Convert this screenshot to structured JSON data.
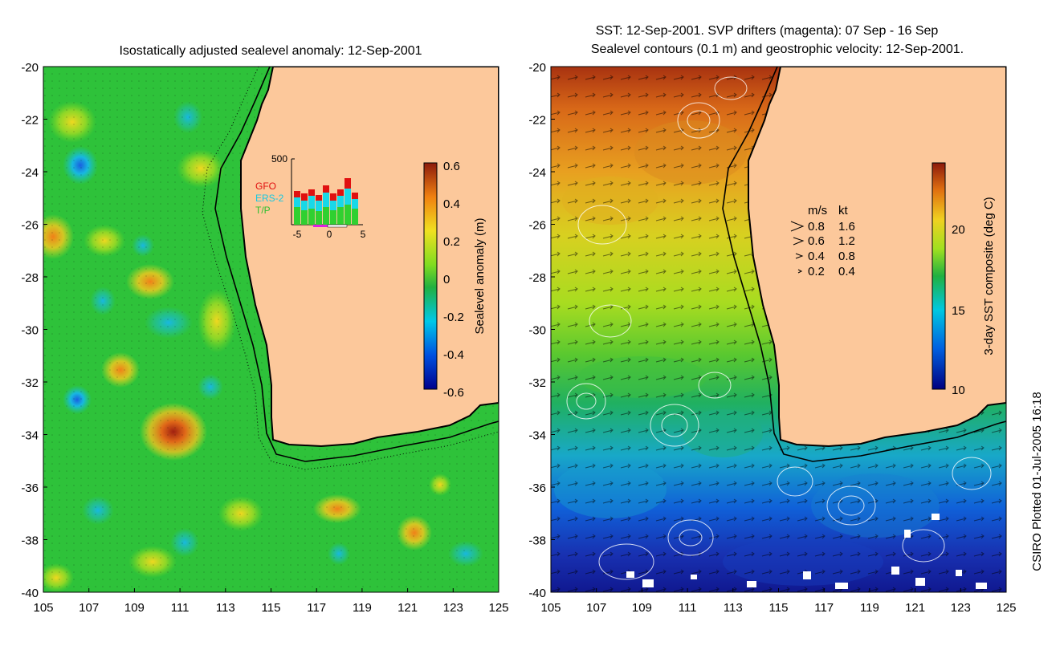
{
  "left_panel": {
    "title": "Isostatically adjusted sealevel anomaly: 12-Sep-2001",
    "colorbar": {
      "label": "Sealevel anomaly (m)",
      "ticks": [
        "0.6",
        "0.4",
        "0.2",
        "0",
        "-0.2",
        "-0.4",
        "-0.6"
      ]
    },
    "inset": {
      "ymax_label": "500",
      "x_ticks": [
        "-5",
        "0",
        "5"
      ],
      "legend": [
        {
          "name": "GFO",
          "color": "#e01010"
        },
        {
          "name": "ERS-2",
          "color": "#18d8e8"
        },
        {
          "name": "T/P",
          "color": "#30d030"
        }
      ]
    }
  },
  "right_panel": {
    "title_line1": "SST: 12-Sep-2001. SVP drifters (magenta): 07 Sep - 16 Sep",
    "title_line2": "Sealevel contours (0.1 m) and geostrophic velocity: 12-Sep-2001.",
    "colorbar": {
      "label": "3-day SST composite (deg C)",
      "ticks": [
        "20",
        "15",
        "10"
      ]
    },
    "velocity_legend": {
      "header_ms": "m/s",
      "header_kt": "kt",
      "rows": [
        {
          "ms": "0.8",
          "kt": "1.6"
        },
        {
          "ms": "0.6",
          "kt": "1.2"
        },
        {
          "ms": "0.4",
          "kt": "0.8"
        },
        {
          "ms": "0.2",
          "kt": "0.4"
        }
      ]
    }
  },
  "axes": {
    "y_ticks": [
      "-20",
      "-22",
      "-24",
      "-26",
      "-28",
      "-30",
      "-32",
      "-34",
      "-36",
      "-38",
      "-40"
    ],
    "x_ticks": [
      "105",
      "107",
      "109",
      "111",
      "113",
      "115",
      "117",
      "119",
      "121",
      "123",
      "125"
    ]
  },
  "credit": "CSIRO Plotted 01-Jul-2005 16:18",
  "colors": {
    "land": "#fcc89b",
    "sla_background": "#2ec23a",
    "coast": "#000000"
  }
}
